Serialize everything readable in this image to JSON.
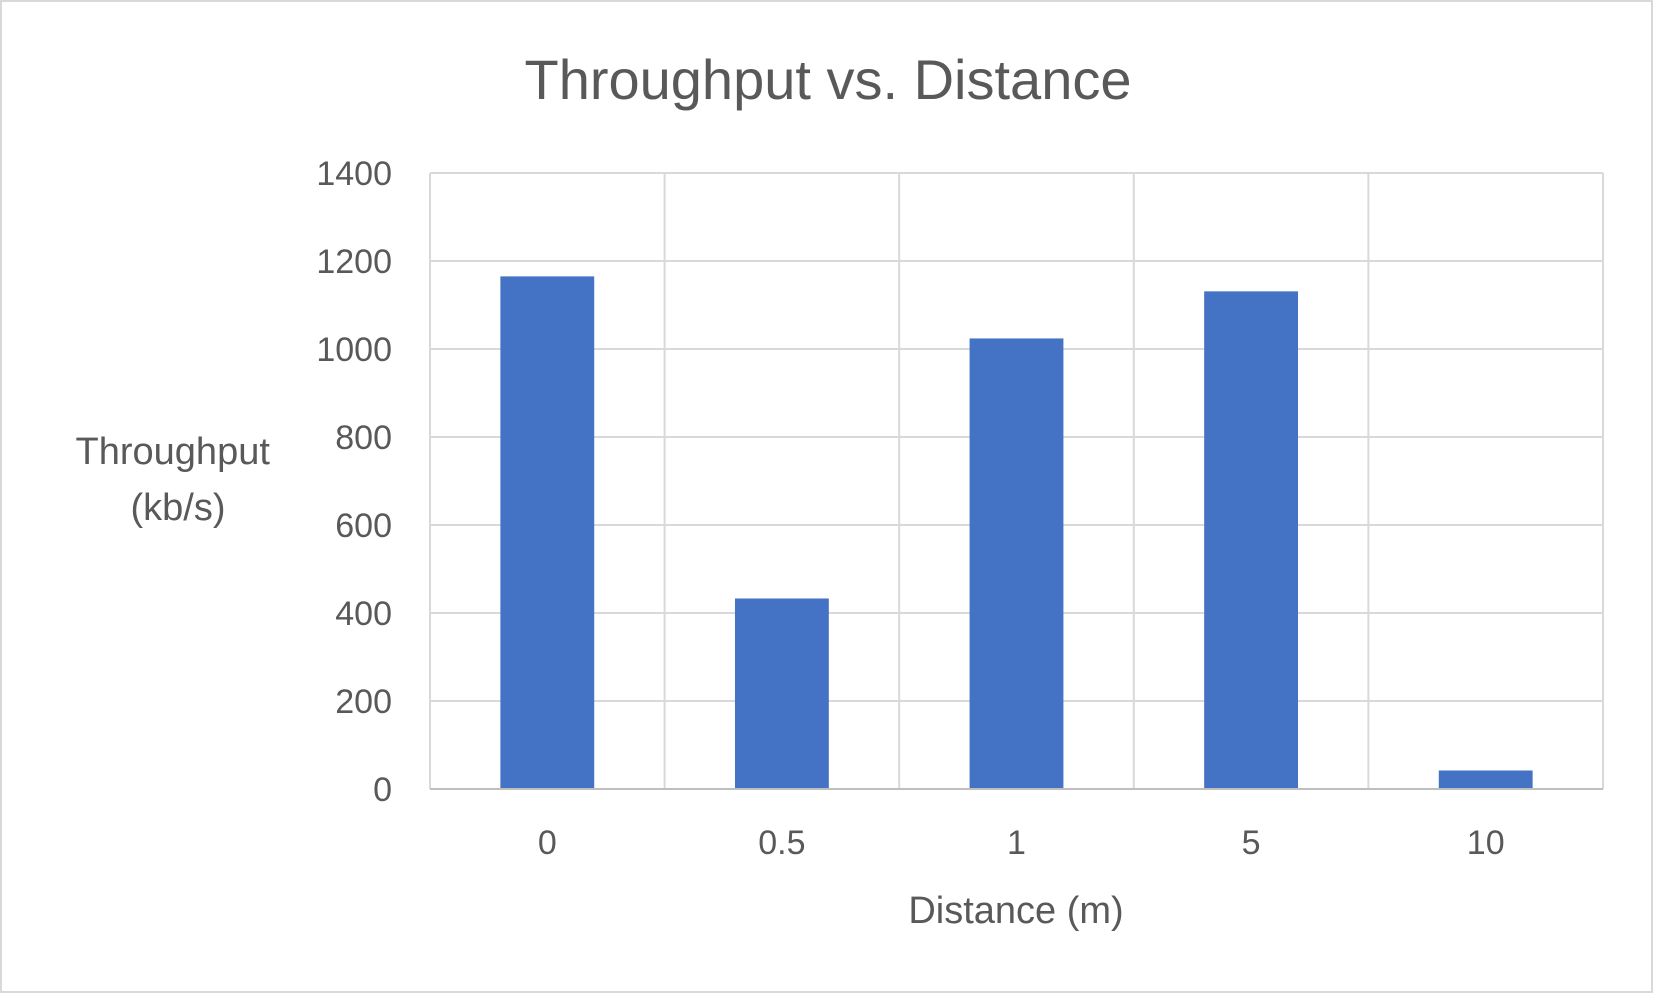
{
  "chart_data": {
    "type": "bar",
    "title": "Throughput vs. Distance",
    "xlabel": "Distance (m)",
    "ylabel": "Throughput (kb/s)",
    "ylabel_lines": [
      "Throughput",
      "(kb/s)"
    ],
    "categories": [
      "0",
      "0.5",
      "1",
      "5",
      "10"
    ],
    "values": [
      1165,
      433,
      1024,
      1131,
      42
    ],
    "ylim": [
      0,
      1400
    ],
    "yticks": [
      0,
      200,
      400,
      600,
      800,
      1000,
      1200,
      1400
    ],
    "grid": true,
    "legend": "none",
    "colors": {
      "bar": "#4472C4",
      "grid": "#d9d9d9",
      "axis": "#bfbfbf",
      "text": "#595959"
    }
  }
}
